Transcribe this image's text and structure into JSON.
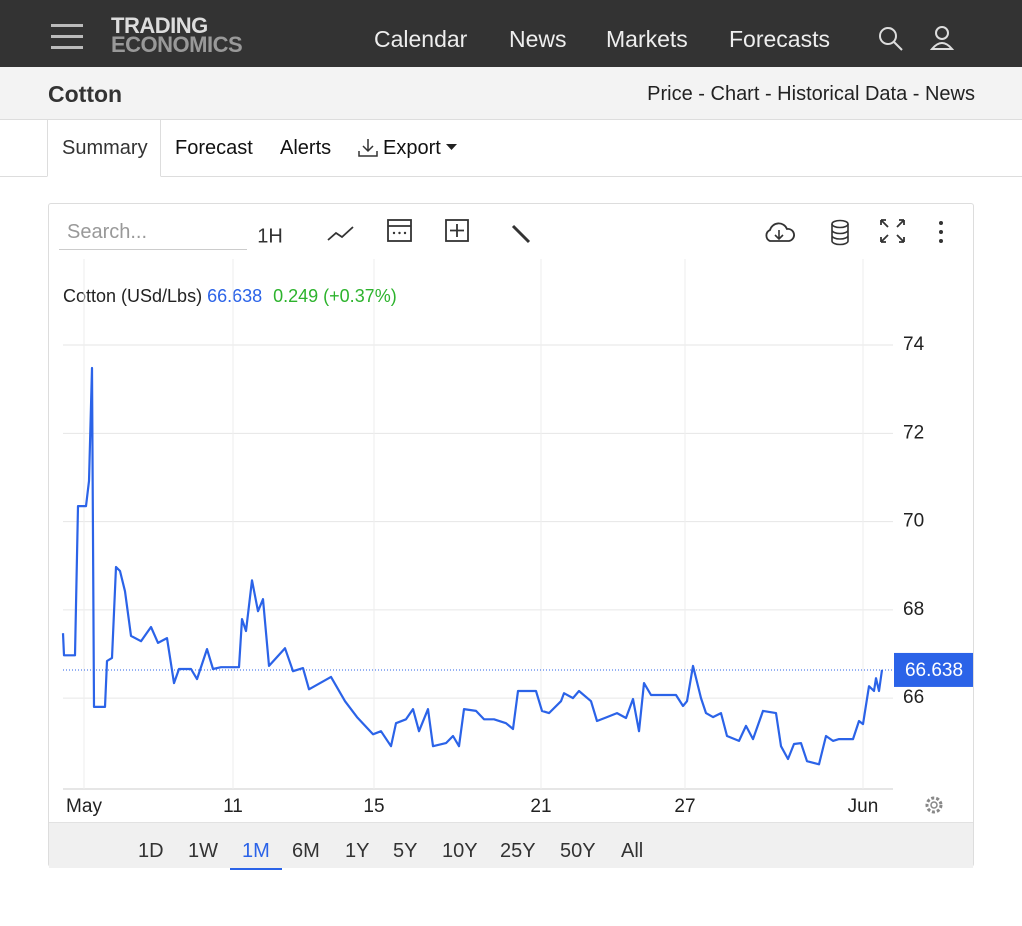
{
  "header": {
    "logo": [
      "TRADING",
      "ECONOMICS"
    ],
    "nav": [
      "Calendar",
      "News",
      "Markets",
      "Forecasts"
    ]
  },
  "subheader": {
    "title": "Cotton",
    "links": "Price - Chart - Historical Data - News"
  },
  "tabs": [
    "Summary",
    "Forecast",
    "Alerts",
    "Export"
  ],
  "toolbar": {
    "search_placeholder": "Search...",
    "interval": "1H"
  },
  "chart_data": {
    "type": "line",
    "title": "Cotton (USd/Lbs)",
    "price": "66.638",
    "change": "0.249 (+0.37%)",
    "x": [
      0,
      1,
      12,
      15,
      23,
      26,
      29,
      31,
      42,
      44,
      49,
      53,
      57,
      62,
      68,
      78,
      88,
      95,
      104,
      111,
      116,
      128,
      134,
      144,
      150,
      158,
      176,
      179,
      183,
      189,
      195,
      200,
      206,
      222,
      230,
      240,
      246,
      268,
      282,
      294,
      310,
      318,
      328,
      333,
      343,
      350,
      356,
      365,
      370,
      383,
      390,
      396,
      401,
      413,
      421,
      431,
      443,
      450,
      455,
      473,
      479,
      486,
      498,
      501,
      510,
      516,
      528,
      534,
      544,
      554,
      563,
      570,
      576,
      581,
      588,
      613,
      620,
      624,
      630,
      638,
      643,
      650,
      658,
      664,
      676,
      683,
      690,
      700,
      713,
      718,
      725,
      731,
      738,
      744,
      756,
      763,
      770,
      776,
      790,
      796,
      800,
      806,
      811,
      813,
      816,
      819
    ],
    "series": [
      {
        "name": "Cotton",
        "color": "#2b63e8",
        "values": [
          67.47,
          66.97,
          66.97,
          70.35,
          70.35,
          70.92,
          73.48,
          65.8,
          65.8,
          66.84,
          66.91,
          68.97,
          68.88,
          68.42,
          67.41,
          67.29,
          67.61,
          67.25,
          67.36,
          66.34,
          66.66,
          66.66,
          66.43,
          67.11,
          66.66,
          66.7,
          66.7,
          67.79,
          67.52,
          68.67,
          67.97,
          68.24,
          66.73,
          67.13,
          66.61,
          66.68,
          66.2,
          66.48,
          65.93,
          65.57,
          65.18,
          65.25,
          64.91,
          65.43,
          65.52,
          65.75,
          65.25,
          65.75,
          64.91,
          64.98,
          65.14,
          64.91,
          65.75,
          65.71,
          65.52,
          65.52,
          65.43,
          65.3,
          66.16,
          66.16,
          65.71,
          65.66,
          65.93,
          66.11,
          66,
          66.16,
          65.93,
          65.48,
          65.57,
          65.66,
          65.55,
          65.98,
          65.25,
          66.34,
          66.07,
          66.07,
          65.82,
          65.93,
          66.73,
          66,
          65.66,
          65.57,
          65.66,
          65.14,
          65.03,
          65.37,
          65.07,
          65.71,
          65.66,
          64.91,
          64.62,
          64.96,
          64.98,
          64.57,
          64.5,
          65.14,
          65.03,
          65.07,
          65.07,
          65.48,
          65.41,
          66.27,
          66.16,
          66.45,
          66.16,
          66.638
        ]
      }
    ],
    "last_value": 66.638,
    "xlim": [
      0,
      830
    ],
    "xticks": [
      {
        "value": 21,
        "label": "May"
      },
      {
        "value": 170,
        "label": "11"
      },
      {
        "value": 311,
        "label": "15"
      },
      {
        "value": 478,
        "label": "21"
      },
      {
        "value": 622,
        "label": "27"
      },
      {
        "value": 800,
        "label": "Jun"
      }
    ],
    "ylim": [
      63.94,
      75.95
    ],
    "yticks": [
      66,
      68,
      70,
      72,
      74
    ],
    "grid": true
  },
  "ranges": [
    "1D",
    "1W",
    "1M",
    "6M",
    "1Y",
    "5Y",
    "10Y",
    "25Y",
    "50Y",
    "All"
  ],
  "active_range": 2
}
